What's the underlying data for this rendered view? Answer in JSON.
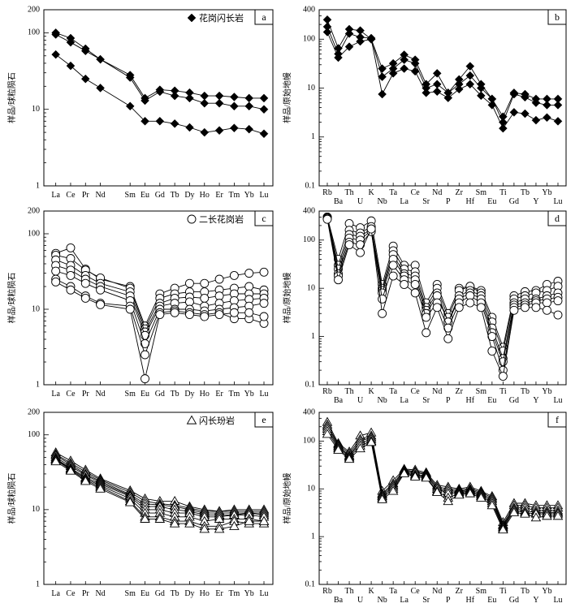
{
  "chart_data": [
    {
      "type": "line",
      "panel_label": "a",
      "legend": "花岗闪长岩",
      "marker": "diamond",
      "ylabel": "样品/球粒陨石",
      "yscale": "log",
      "ylim": [
        1,
        200
      ],
      "y_ticks": [
        "1",
        "10",
        "100",
        "200"
      ],
      "categories": [
        "La",
        "Ce",
        "Pr",
        "Nd",
        "Sm",
        "Eu",
        "Gd",
        "Tb",
        "Dy",
        "Ho",
        "Er",
        "Tm",
        "Yb",
        "Lu"
      ],
      "x": [
        1,
        2,
        3,
        4,
        6,
        7,
        8,
        9,
        10,
        11,
        12,
        13,
        14,
        15
      ],
      "series": [
        {
          "values": [
            100,
            85,
            62,
            45,
            28,
            14,
            18,
            17.5,
            16.5,
            15,
            15,
            14.5,
            14,
            14
          ]
        },
        {
          "values": [
            95,
            75,
            58,
            45,
            26,
            13,
            17,
            15,
            14,
            12,
            12,
            11,
            11,
            10
          ]
        },
        {
          "values": [
            52,
            37,
            25,
            19,
            11,
            7,
            7,
            6.5,
            5.8,
            5,
            5.3,
            5.7,
            5.5,
            4.8
          ]
        }
      ]
    },
    {
      "type": "line",
      "panel_label": "b",
      "marker": "diamond",
      "ylabel": "样品/原始地幔",
      "yscale": "log",
      "ylim": [
        0.1,
        400
      ],
      "y_ticks": [
        "0.1",
        "1",
        "10",
        "100",
        "400"
      ],
      "categories": [
        "Rb",
        "Ba",
        "Th",
        "U",
        "K",
        "Nb",
        "Ta",
        "La",
        "Ce",
        "Sr",
        "Nd",
        "P",
        "Zr",
        "Hf",
        "Sm",
        "Eu",
        "Ti",
        "Gd",
        "Tb",
        "Y",
        "Yb",
        "Lu"
      ],
      "x_top": [
        "Rb",
        "Th",
        "K",
        "Ta",
        "Ce",
        "Nd",
        "Zr",
        "Sm",
        "Ti",
        "Tb",
        "Yb"
      ],
      "x_bottom": [
        "Ba",
        "U",
        "Nb",
        "La",
        "Sr",
        "P",
        "Hf",
        "Eu",
        "Gd",
        "Y",
        "Lu"
      ],
      "series": [
        {
          "values": [
            250,
            65,
            160,
            150,
            100,
            25,
            32,
            48,
            38,
            12,
            20,
            8,
            15,
            28,
            12,
            6,
            2.6,
            8,
            7.5,
            6,
            6,
            6
          ]
        },
        {
          "values": [
            180,
            50,
            130,
            110,
            105,
            17,
            25,
            38,
            32,
            10,
            12,
            8,
            12,
            18,
            10,
            6,
            2,
            7.5,
            6.5,
            5,
            4.5,
            4.5
          ]
        },
        {
          "values": [
            140,
            42,
            70,
            90,
            100,
            7.5,
            20,
            25,
            22,
            8,
            8.5,
            6.3,
            9.5,
            12,
            7,
            4.5,
            1.5,
            3.2,
            3,
            2.2,
            2.5,
            2.1
          ]
        }
      ]
    },
    {
      "type": "line",
      "panel_label": "c",
      "legend": "二长花岗岩",
      "marker": "circle",
      "ylabel": "样品/球粒陨石",
      "yscale": "log",
      "ylim": [
        1,
        200
      ],
      "y_ticks": [
        "1",
        "10",
        "100",
        "200"
      ],
      "categories": [
        "La",
        "Ce",
        "Pr",
        "Nd",
        "Sm",
        "Eu",
        "Gd",
        "Tb",
        "Dy",
        "Ho",
        "Er",
        "Tm",
        "Yb",
        "Lu"
      ],
      "x": [
        1,
        2,
        3,
        4,
        6,
        7,
        8,
        9,
        10,
        11,
        12,
        13,
        14,
        15
      ],
      "series": [
        {
          "values": [
            55,
            65,
            34,
            25,
            20,
            6,
            16,
            19,
            22,
            22,
            25,
            28,
            30,
            31
          ]
        },
        {
          "values": [
            52,
            47,
            33,
            26,
            19,
            5.5,
            14,
            16,
            17,
            17,
            18,
            19,
            20,
            18
          ]
        },
        {
          "values": [
            45,
            38,
            28,
            22,
            17,
            5,
            12,
            14,
            14.5,
            14,
            15,
            16,
            16,
            16
          ]
        },
        {
          "values": [
            38,
            33,
            25,
            20,
            15,
            4.5,
            11,
            12,
            12.5,
            11,
            12,
            13,
            13.5,
            14
          ]
        },
        {
          "values": [
            32,
            28,
            22,
            18,
            13,
            3.5,
            10,
            10,
            10,
            9.5,
            10,
            10.5,
            11,
            12
          ]
        },
        {
          "values": [
            25,
            20,
            15,
            12,
            11,
            2.5,
            9,
            9.5,
            9,
            8.5,
            9,
            7.5,
            7.5,
            6.5
          ]
        },
        {
          "values": [
            23,
            18,
            14,
            11.5,
            10,
            1.2,
            8.5,
            9,
            8.5,
            8,
            8.5,
            9,
            9,
            8
          ]
        }
      ]
    },
    {
      "type": "line",
      "panel_label": "d",
      "marker": "circle",
      "ylabel": "样品/原始地幔",
      "yscale": "log",
      "ylim": [
        0.1,
        400
      ],
      "y_ticks": [
        "0.1",
        "1",
        "10",
        "100",
        "400"
      ],
      "categories": [
        "Rb",
        "Ba",
        "Th",
        "U",
        "K",
        "Nb",
        "Ta",
        "La",
        "Ce",
        "Sr",
        "Nd",
        "P",
        "Zr",
        "Hf",
        "Sm",
        "Eu",
        "Ti",
        "Gd",
        "Tb",
        "Y",
        "Yb",
        "Lu"
      ],
      "x_top": [
        "Rb",
        "Th",
        "K",
        "Ta",
        "Ce",
        "Nd",
        "Zr",
        "Sm",
        "Ti",
        "Tb",
        "Yb"
      ],
      "x_bottom": [
        "Ba",
        "U",
        "Nb",
        "La",
        "Sr",
        "P",
        "Hf",
        "Eu",
        "Gd",
        "Y",
        "Lu"
      ],
      "series": [
        {
          "values": [
            300,
            40,
            220,
            180,
            250,
            12,
            75,
            30,
            30,
            5,
            12,
            3,
            10,
            11,
            9,
            2.5,
            0.6,
            7,
            8.5,
            9,
            12,
            14
          ]
        },
        {
          "values": [
            300,
            30,
            160,
            140,
            190,
            10,
            60,
            25,
            22,
            4,
            10,
            2.5,
            9,
            11,
            8,
            2,
            0.5,
            6,
            7,
            8,
            9,
            11
          ]
        },
        {
          "values": [
            300,
            25,
            130,
            120,
            170,
            9,
            50,
            20,
            18,
            3.5,
            8,
            2,
            7,
            9,
            7,
            1.5,
            0.35,
            5,
            6,
            6,
            7,
            8
          ]
        },
        {
          "values": [
            290,
            20,
            110,
            100,
            160,
            8,
            40,
            18,
            15,
            3,
            7,
            2,
            6,
            8,
            6,
            1.2,
            0.3,
            4.5,
            5,
            5.5,
            6,
            6.5
          ]
        },
        {
          "values": [
            280,
            18,
            90,
            80,
            150,
            6,
            30,
            15,
            12,
            2.5,
            5,
            1.5,
            5,
            7,
            5,
            1,
            0.2,
            4,
            4.5,
            5,
            5,
            5.5
          ]
        },
        {
          "values": [
            270,
            15,
            80,
            55,
            170,
            3,
            18,
            12,
            8,
            1.2,
            4,
            0.9,
            4,
            5,
            4,
            0.5,
            0.15,
            3.5,
            4,
            4,
            3.5,
            2.8
          ]
        }
      ]
    },
    {
      "type": "line",
      "panel_label": "e",
      "legend": "闪长玢岩",
      "marker": "triangle",
      "ylabel": "样品/球粒陨石",
      "yscale": "log",
      "ylim": [
        1,
        200
      ],
      "y_ticks": [
        "1",
        "10",
        "100",
        "200"
      ],
      "categories": [
        "La",
        "Ce",
        "Pr",
        "Nd",
        "Sm",
        "Eu",
        "Gd",
        "Tb",
        "Dy",
        "Ho",
        "Er",
        "Tm",
        "Yb",
        "Lu"
      ],
      "x": [
        1,
        2,
        3,
        4,
        6,
        7,
        8,
        9,
        10,
        11,
        12,
        13,
        14,
        15
      ],
      "series": [
        {
          "values": [
            58,
            45,
            34,
            26,
            18,
            14,
            13,
            13,
            11,
            10,
            9.5,
            10,
            10,
            10
          ]
        },
        {
          "values": [
            55,
            42,
            32,
            25,
            17,
            13,
            12,
            11.5,
            10.5,
            9.5,
            9.5,
            9.5,
            9.5,
            9.5
          ]
        },
        {
          "values": [
            53,
            40,
            30,
            24,
            16,
            12,
            11.5,
            11,
            10,
            9,
            9,
            9,
            9,
            9
          ]
        },
        {
          "values": [
            50,
            38,
            29,
            23,
            15.5,
            11,
            11,
            10,
            9.5,
            8.5,
            8.5,
            8.5,
            9,
            8.5
          ]
        },
        {
          "values": [
            48,
            36,
            27,
            22,
            15,
            10,
            10,
            9,
            9,
            8,
            8,
            8.5,
            8.5,
            8
          ]
        },
        {
          "values": [
            47,
            35,
            26,
            21,
            14,
            9,
            9,
            8,
            8,
            7,
            7.5,
            7.5,
            7.5,
            7
          ]
        },
        {
          "values": [
            46,
            34,
            25,
            20,
            13,
            8,
            8,
            7,
            7,
            6,
            6,
            7,
            6.5,
            6.5
          ]
        },
        {
          "values": [
            44,
            33,
            24,
            19,
            12.5,
            7.5,
            7.5,
            6.5,
            6.5,
            5.5,
            5.5,
            6,
            7,
            7
          ]
        }
      ]
    },
    {
      "type": "line",
      "panel_label": "f",
      "marker": "triangle",
      "ylabel": "样品/原始地幔",
      "yscale": "log",
      "ylim": [
        0.1,
        400
      ],
      "y_ticks": [
        "0.1",
        "1",
        "10",
        "100",
        "400"
      ],
      "categories": [
        "Rb",
        "Ba",
        "Th",
        "U",
        "K",
        "Nb",
        "Ta",
        "La",
        "Ce",
        "Sr",
        "Nd",
        "P",
        "Zr",
        "Hf",
        "Sm",
        "Eu",
        "Ti",
        "Gd",
        "Tb",
        "Y",
        "Yb",
        "Lu"
      ],
      "x_top": [
        "Rb",
        "Th",
        "K",
        "Ta",
        "Ce",
        "Nd",
        "Zr",
        "Sm",
        "Ti",
        "Tb",
        "Yb"
      ],
      "x_bottom": [
        "Ba",
        "U",
        "Nb",
        "La",
        "Sr",
        "P",
        "Hf",
        "Eu",
        "Gd",
        "Y",
        "Lu"
      ],
      "series": [
        {
          "values": [
            250,
            90,
            60,
            130,
            150,
            9,
            15,
            26,
            25,
            22,
            12,
            11,
            10,
            11,
            9,
            7,
            2,
            5,
            5,
            4.5,
            4.5,
            4.5
          ]
        },
        {
          "values": [
            220,
            85,
            55,
            110,
            130,
            8,
            13,
            25,
            23,
            21,
            11,
            10,
            9.5,
            10,
            8.5,
            6.5,
            1.8,
            4.5,
            4.5,
            4,
            4,
            4
          ]
        },
        {
          "values": [
            200,
            80,
            50,
            100,
            120,
            7.5,
            12,
            24,
            22,
            20,
            10,
            9,
            9,
            9.5,
            8,
            6,
            1.7,
            4,
            4,
            3.5,
            3.5,
            3.5
          ]
        },
        {
          "values": [
            180,
            75,
            48,
            90,
            110,
            7,
            11,
            23,
            20,
            19,
            10,
            8,
            8.5,
            9,
            7.5,
            5.5,
            1.6,
            3.8,
            3.5,
            3.2,
            3.2,
            3.2
          ]
        },
        {
          "values": [
            160,
            70,
            45,
            80,
            100,
            6.5,
            10,
            22,
            19,
            18,
            9,
            6.5,
            8,
            8.5,
            7,
            5,
            1.5,
            3.5,
            3.2,
            3,
            3,
            3
          ]
        },
        {
          "values": [
            140,
            65,
            42,
            70,
            95,
            6,
            9,
            21,
            18,
            17,
            8.5,
            5.5,
            7.5,
            8,
            6.5,
            4.5,
            1.4,
            3.2,
            3,
            2.5,
            2.7,
            2.7
          ]
        }
      ]
    }
  ]
}
